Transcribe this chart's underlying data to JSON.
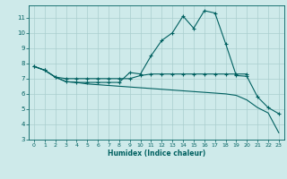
{
  "xlabel": "Humidex (Indice chaleur)",
  "bg_color": "#ceeaea",
  "grid_color": "#aacece",
  "line_color": "#006060",
  "xlim": [
    -0.5,
    23.5
  ],
  "ylim": [
    3,
    11.8
  ],
  "yticks": [
    3,
    4,
    5,
    6,
    7,
    8,
    9,
    10,
    11
  ],
  "xticks": [
    0,
    1,
    2,
    3,
    4,
    5,
    6,
    7,
    8,
    9,
    10,
    11,
    12,
    13,
    14,
    15,
    16,
    17,
    18,
    19,
    20,
    21,
    22,
    23
  ],
  "series1_x": [
    0,
    1,
    2,
    3,
    4,
    5,
    6,
    7,
    8,
    9,
    10,
    11,
    12,
    13,
    14,
    15,
    16,
    17,
    18,
    19,
    20,
    21,
    22,
    23
  ],
  "series1_y": [
    7.8,
    7.55,
    7.1,
    6.8,
    6.75,
    6.75,
    6.75,
    6.75,
    6.75,
    7.4,
    7.3,
    8.5,
    9.5,
    10.0,
    11.1,
    10.3,
    11.45,
    11.3,
    9.3,
    7.2,
    7.15,
    5.8,
    5.1,
    4.7
  ],
  "series2_x": [
    0,
    1,
    2,
    3,
    4,
    5,
    6,
    7,
    8,
    9,
    10,
    11,
    12,
    13,
    14,
    15,
    16,
    17,
    18,
    19,
    20
  ],
  "series2_y": [
    7.8,
    7.55,
    7.1,
    7.0,
    7.0,
    7.0,
    7.0,
    7.0,
    7.0,
    7.0,
    7.2,
    7.3,
    7.3,
    7.3,
    7.3,
    7.3,
    7.3,
    7.3,
    7.3,
    7.3,
    7.3
  ],
  "series3_x": [
    0,
    1,
    2,
    3,
    4,
    5,
    6,
    7,
    8,
    9,
    10,
    11,
    12,
    13,
    14,
    15,
    16,
    17,
    18,
    19,
    20,
    21,
    22,
    23
  ],
  "series3_y": [
    7.8,
    7.55,
    7.1,
    6.8,
    6.75,
    6.65,
    6.6,
    6.55,
    6.5,
    6.45,
    6.4,
    6.35,
    6.3,
    6.25,
    6.2,
    6.15,
    6.1,
    6.05,
    6.0,
    5.9,
    5.6,
    5.1,
    4.75,
    3.45
  ]
}
